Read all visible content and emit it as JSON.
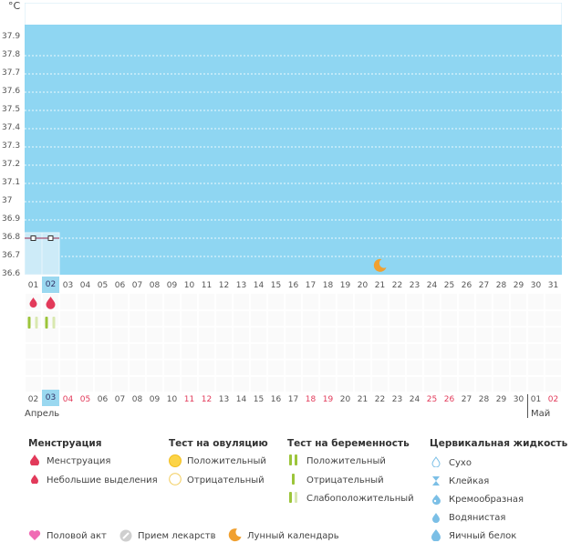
{
  "chart": {
    "unit": "°C",
    "y_ticks": [
      "37.9",
      "37.8",
      "37.7",
      "37.6",
      "37.5",
      "37.4",
      "37.3",
      "37.2",
      "37.1",
      "37",
      "36.9",
      "36.8",
      "36.7",
      "36.6"
    ],
    "cycle_days": [
      "01",
      "02",
      "03",
      "04",
      "05",
      "06",
      "07",
      "08",
      "09",
      "10",
      "11",
      "12",
      "13",
      "14",
      "15",
      "16",
      "17",
      "18",
      "19",
      "20",
      "21",
      "22",
      "23",
      "24",
      "25",
      "26",
      "27",
      "28",
      "29",
      "30",
      "31"
    ],
    "selected_cycle_day": "02",
    "calendar_days": [
      "02",
      "03",
      "04",
      "05",
      "06",
      "07",
      "08",
      "09",
      "10",
      "11",
      "12",
      "13",
      "14",
      "15",
      "16",
      "17",
      "18",
      "19",
      "20",
      "21",
      "22",
      "23",
      "24",
      "25",
      "26",
      "27",
      "28",
      "29",
      "30",
      "01",
      "02"
    ],
    "weekend_calendar_days_idx": [
      2,
      3,
      9,
      10,
      16,
      17,
      23,
      24,
      30
    ],
    "today_calendar_idx": 1,
    "month_start": "Апрель",
    "month_end": "Май",
    "moon_day_idx": 20,
    "colors": {
      "fill": "#8fd6f2",
      "accent": "#e23a5a",
      "moon": "#f0a030",
      "test": "#9cc53a"
    }
  },
  "chart_data": {
    "type": "line",
    "ylim": [
      36.6,
      37.9
    ],
    "x": [
      "01",
      "02"
    ],
    "series": [
      {
        "values": [
          36.8,
          36.8
        ]
      }
    ],
    "menstruation_days": [
      "01",
      "02"
    ],
    "pregnancy_tests_days": [
      "01",
      "02"
    ]
  },
  "legend": {
    "menstruation": {
      "title": "Менструация",
      "items": [
        "Менструация",
        "Небольшие выделения"
      ]
    },
    "ovulation": {
      "title": "Тест на овуляцию",
      "items": [
        "Положительный",
        "Отрицательный"
      ]
    },
    "pregnancy": {
      "title": "Тест на беременность",
      "items": [
        "Положительный",
        "Отрицательный",
        "Слабоположительный"
      ]
    },
    "cervical": {
      "title": "Цервикальная жидкость",
      "items": [
        "Сухо",
        "Клейкая",
        "Кремообразная",
        "Водянистая",
        "Яичный белок"
      ]
    },
    "bottom": [
      "Половой акт",
      "Прием лекарств",
      "Лунный календарь"
    ]
  }
}
